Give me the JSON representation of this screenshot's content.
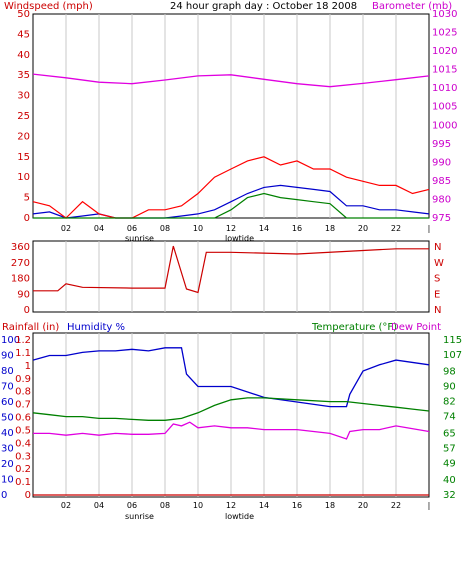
{
  "header": {
    "title": "24 hour graph day : October 18 2008",
    "left_label": "Windspeed (mph)",
    "right_label": "Barometer (mb)"
  },
  "colors": {
    "wind_gust": "#ff0000",
    "wind_avg": "#0000cc",
    "wind_low": "#008000",
    "barometer": "#e000e0",
    "direction": "#cc0000",
    "rainfall": "#cc0000",
    "humidity": "#0000cc",
    "temperature": "#008000",
    "dewpoint": "#e000e0",
    "grid": "#c8c8c8",
    "frame": "#000000"
  },
  "x_ticks": [
    "02",
    "04",
    "06",
    "08",
    "10",
    "12",
    "14",
    "16",
    "18",
    "20",
    "22",
    "|"
  ],
  "markers": {
    "sunrise": "sunrise",
    "lowtide": "lowtide"
  },
  "chart_data": [
    {
      "type": "line",
      "name": "wind-barometer",
      "x_range": [
        0,
        24
      ],
      "y_left": {
        "ticks": [
          0,
          5,
          10,
          15,
          20,
          25,
          30,
          35,
          40,
          45,
          50
        ],
        "range": [
          0,
          50
        ]
      },
      "y_right": {
        "ticks": [
          975,
          980,
          985,
          990,
          995,
          1000,
          1005,
          1010,
          1015,
          1020,
          1025,
          1030
        ],
        "range": [
          975,
          1030
        ]
      },
      "series": [
        {
          "key": "barometer",
          "axis": "right",
          "x": [
            0,
            2,
            4,
            6,
            8,
            10,
            12,
            14,
            16,
            18,
            20,
            22,
            24
          ],
          "values": [
            1013.8,
            1012.8,
            1011.6,
            1011.2,
            1012.2,
            1013.3,
            1013.6,
            1012.4,
            1011.2,
            1010.4,
            1011.3,
            1012.3,
            1013.3
          ]
        },
        {
          "key": "wind_avg",
          "axis": "left",
          "x": [
            0,
            1,
            2,
            3,
            4,
            5,
            6,
            7,
            8,
            9,
            10,
            11,
            12,
            13,
            14,
            15,
            16,
            17,
            18,
            19,
            20,
            21,
            22,
            23,
            24
          ],
          "values": [
            1,
            1.5,
            0,
            0.5,
            1,
            0,
            0,
            0,
            0,
            0.5,
            1,
            2,
            4,
            6,
            7.5,
            8,
            7.5,
            7,
            6.5,
            3,
            3,
            2,
            2,
            1.5,
            1
          ]
        },
        {
          "key": "wind_gust",
          "axis": "left",
          "x": [
            0,
            1,
            2,
            3,
            4,
            5,
            6,
            7,
            8,
            9,
            10,
            11,
            12,
            13,
            14,
            15,
            16,
            17,
            18,
            19,
            20,
            21,
            22,
            23,
            24
          ],
          "values": [
            4,
            3,
            0,
            4,
            1,
            0,
            0,
            2,
            2,
            3,
            6,
            10,
            12,
            14,
            15,
            13,
            14,
            12,
            12,
            10,
            9,
            8,
            8,
            6,
            7
          ]
        },
        {
          "key": "wind_low",
          "axis": "left",
          "x": [
            0,
            1,
            2,
            3,
            4,
            5,
            6,
            7,
            8,
            9,
            10,
            11,
            12,
            13,
            14,
            15,
            16,
            17,
            18,
            19,
            20,
            21,
            22,
            23,
            24
          ],
          "values": [
            0,
            0,
            0,
            0,
            0,
            0,
            0,
            0,
            0,
            0,
            0,
            0,
            2,
            5,
            6,
            5,
            4.5,
            4,
            3.5,
            0,
            0,
            0,
            0,
            0,
            0
          ]
        }
      ]
    },
    {
      "type": "line",
      "name": "wind-direction",
      "x_range": [
        0,
        24
      ],
      "y_left": {
        "ticks": [
          0,
          90,
          180,
          270,
          360
        ],
        "range": [
          0,
          360
        ]
      },
      "y_right_labels": [
        "N",
        "W",
        "S",
        "E",
        "N"
      ],
      "series": [
        {
          "key": "direction",
          "x": [
            0,
            1.5,
            2,
            3,
            6,
            8,
            8.5,
            9.3,
            10,
            10.5,
            12,
            16,
            20,
            22,
            24
          ],
          "values": [
            110,
            110,
            150,
            130,
            125,
            125,
            365,
            120,
            100,
            330,
            330,
            320,
            340,
            350,
            350
          ]
        }
      ]
    },
    {
      "type": "line",
      "name": "temp-humidity",
      "labels": {
        "rainfall": "Rainfall (in)",
        "humidity": "Humidity %",
        "temperature": "Temperature (°F)",
        "dewpoint": "Dew Point"
      },
      "x_range": [
        0,
        24
      ],
      "y_humidity": {
        "ticks": [
          0,
          10,
          20,
          30,
          40,
          50,
          60,
          70,
          80,
          90,
          100
        ],
        "range": [
          0,
          100
        ]
      },
      "y_rain": {
        "ticks": [
          "0",
          "0.1",
          "0.2",
          "0.3",
          "0.4",
          "0.5",
          "0.6",
          "0.7",
          "0.8",
          "0.9",
          "1",
          "1.1",
          "1.2"
        ],
        "range": [
          0,
          1.2
        ]
      },
      "y_temp": {
        "ticks": [
          32,
          40,
          49,
          57,
          65,
          74,
          82,
          90,
          98,
          107,
          115
        ],
        "range": [
          32,
          115
        ]
      },
      "series": [
        {
          "key": "humidity",
          "axis": "humidity",
          "x": [
            0,
            1,
            2,
            3,
            4,
            5,
            6,
            7,
            8,
            9,
            9.3,
            10,
            12,
            14,
            16,
            18,
            19,
            19.2,
            20,
            21,
            22,
            24
          ],
          "values": [
            87,
            90,
            90,
            92,
            93,
            93,
            94,
            93,
            95,
            95,
            78,
            70,
            70,
            63,
            60,
            57,
            57,
            65,
            80,
            84,
            87,
            84
          ]
        },
        {
          "key": "temperature",
          "axis": "temp",
          "x": [
            0,
            1,
            2,
            3,
            4,
            5,
            6,
            7,
            8,
            9,
            10,
            11,
            12,
            13,
            14,
            16,
            18,
            19,
            20,
            21,
            22,
            23,
            24
          ],
          "values": [
            76,
            75,
            74,
            74,
            73,
            73,
            72.5,
            72,
            72,
            73,
            76,
            80,
            83,
            84,
            84,
            83,
            82,
            82,
            81,
            80,
            79,
            78,
            77
          ]
        },
        {
          "key": "dewpoint",
          "axis": "temp",
          "x": [
            0,
            1,
            2,
            3,
            4,
            5,
            6,
            7,
            8,
            8.5,
            9,
            9.5,
            10,
            11,
            12,
            13,
            14,
            16,
            18,
            19,
            19.2,
            20,
            21,
            22,
            24
          ],
          "values": [
            65,
            65,
            64,
            65,
            64,
            65,
            64.5,
            64.5,
            65,
            70,
            69,
            71,
            68,
            69,
            68,
            68,
            67,
            67,
            65,
            62,
            66,
            67,
            67,
            69,
            66
          ]
        },
        {
          "key": "rainfall",
          "axis": "rain",
          "x": [
            0,
            24
          ],
          "values": [
            0,
            0
          ]
        }
      ]
    }
  ]
}
